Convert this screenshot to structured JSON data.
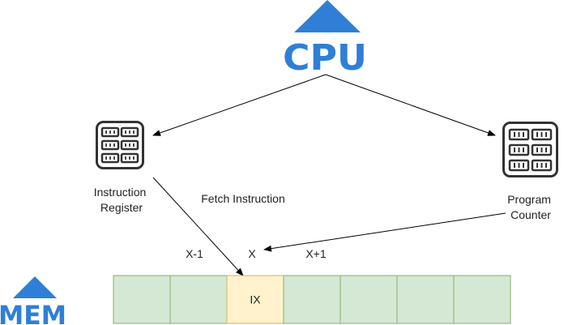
{
  "logos": {
    "cpu": "CPU",
    "mem": "MEM"
  },
  "icons": {
    "instruction_register": "register-chip-icon",
    "program_counter": "register-chip-icon"
  },
  "labels": {
    "instruction_register": [
      "Instruction",
      "Register"
    ],
    "program_counter": [
      "Program",
      "Counter"
    ],
    "fetch": "Fetch Instruction",
    "x_minus": "X-1",
    "x": "X",
    "x_plus": "X+1"
  },
  "memory": {
    "cells": [
      "",
      "",
      "IX",
      "",
      "",
      "",
      ""
    ],
    "highlight_index": 2
  },
  "colors": {
    "brand_blue": "#2f7fd6",
    "fetch_red": "#e0201b",
    "cell_fill": "#d5e8d4",
    "cell_stroke": "#82b366",
    "highlight_fill": "#fff2cc",
    "highlight_stroke": "#d6b656",
    "arrow": "#000000",
    "icon": "#333333"
  }
}
